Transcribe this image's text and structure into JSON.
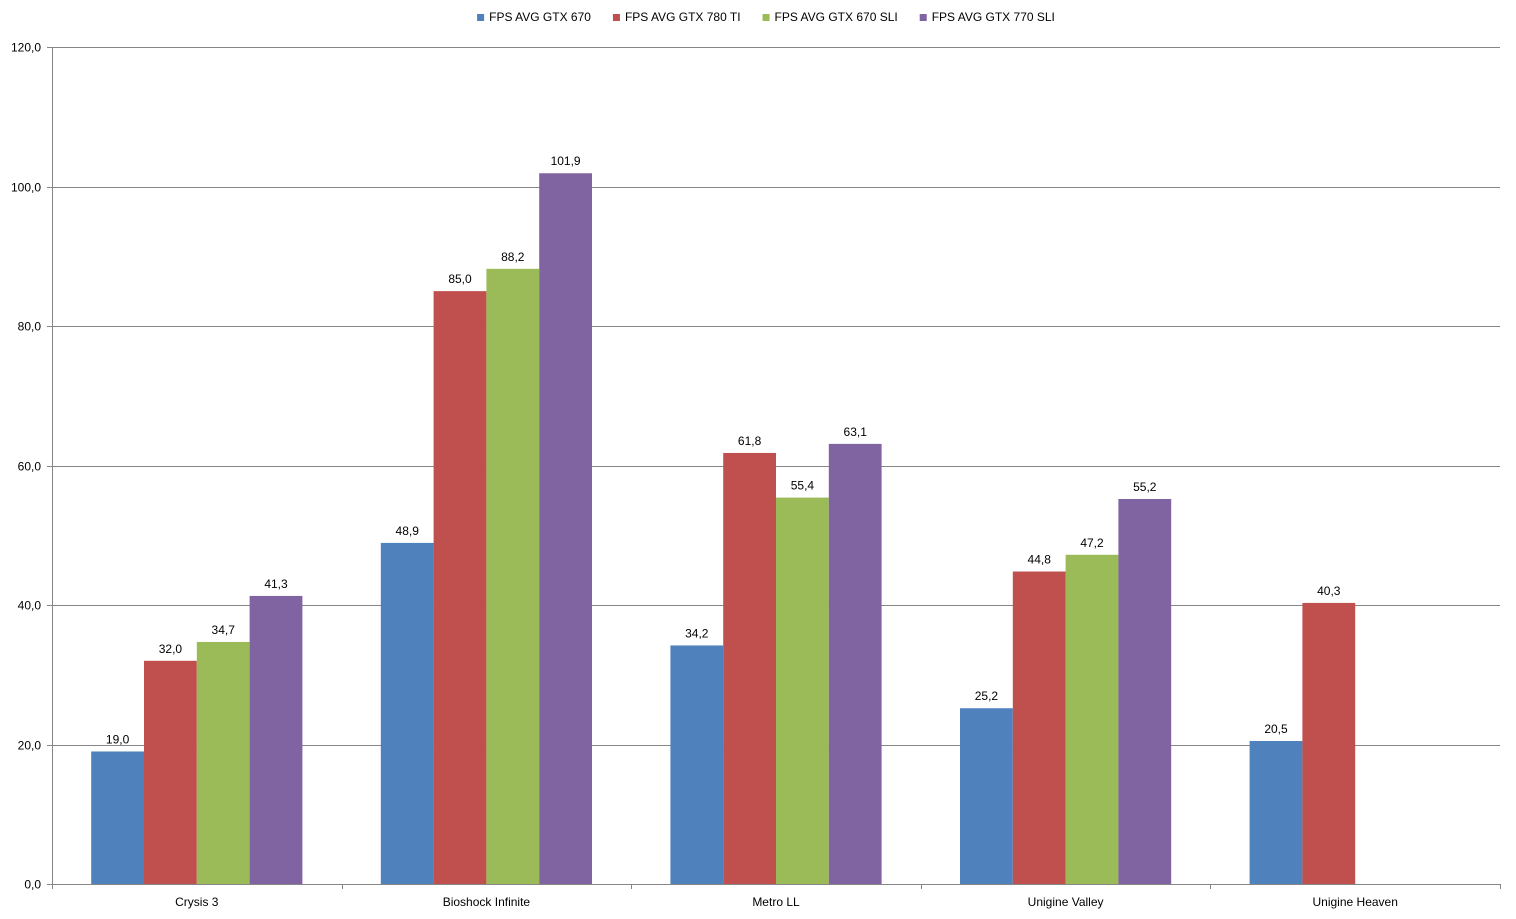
{
  "chart_data": {
    "type": "bar",
    "categories": [
      "Crysis 3",
      "Bioshock Infinite",
      "Metro LL",
      "Unigine Valley",
      "Unigine Heaven"
    ],
    "series": [
      {
        "name": "FPS AVG GTX 670",
        "color": "#4F81BD",
        "values": [
          19.0,
          48.9,
          34.2,
          25.2,
          20.5
        ]
      },
      {
        "name": "FPS AVG GTX 780 TI",
        "color": "#C0504D",
        "values": [
          32.0,
          85.0,
          61.8,
          44.8,
          40.3
        ]
      },
      {
        "name": "FPS AVG GTX 670 SLI",
        "color": "#9BBB59",
        "values": [
          34.7,
          88.2,
          55.4,
          47.2,
          null
        ]
      },
      {
        "name": "FPS AVG GTX 770 SLI",
        "color": "#8064A2",
        "values": [
          41.3,
          101.9,
          63.1,
          55.2,
          null
        ]
      }
    ],
    "data_labels": [
      [
        "19,0",
        "48,9",
        "34,2",
        "25,2",
        "20,5"
      ],
      [
        "32,0",
        "85,0",
        "61,8",
        "44,8",
        "40,3"
      ],
      [
        "34,7",
        "88,2",
        "55,4",
        "47,2",
        ""
      ],
      [
        "41,3",
        "101,9",
        "63,1",
        "55,2",
        ""
      ]
    ],
    "ylim": [
      0,
      120
    ],
    "yticks": [
      0,
      20,
      40,
      60,
      80,
      100,
      120
    ],
    "ytick_labels": [
      "0,0",
      "20,0",
      "40,0",
      "60,0",
      "80,0",
      "100,0",
      "120,0"
    ],
    "grid": true,
    "legend": "top-center",
    "colors": {
      "gridline": "#868686",
      "axis": "#868686"
    }
  }
}
